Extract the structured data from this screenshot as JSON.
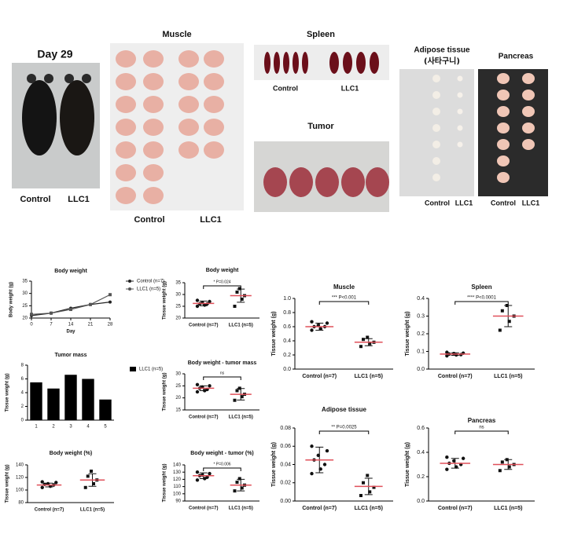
{
  "photos": {
    "mouse": {
      "title": "Day 29",
      "labels": [
        "Control",
        "LLC1"
      ]
    },
    "muscle": {
      "title": "Muscle",
      "labels": [
        "Control",
        "LLC1"
      ]
    },
    "spleen": {
      "title": "Spleen",
      "labels": [
        "Control",
        "LLC1"
      ]
    },
    "tumor": {
      "title": "Tumor"
    },
    "adipose": {
      "title": "Adipose tissue",
      "subtitle": "(사타구니)",
      "labels": [
        "Control",
        "LLC1"
      ]
    },
    "pancreas": {
      "title": "Pancreas",
      "labels": [
        "Control",
        "LLC1"
      ]
    }
  },
  "chart_data": [
    {
      "type": "line",
      "title": "Body weight",
      "x_label": "Day",
      "y_label": "Body weight (g)",
      "x": [
        0,
        7,
        14,
        21,
        28
      ],
      "xlim": [
        0,
        28
      ],
      "xticks": [
        0,
        7,
        14,
        21,
        28
      ],
      "ylim": [
        20,
        35
      ],
      "yticks": [
        20,
        25,
        30,
        35
      ],
      "series": [
        {
          "name": "Control (n=7)",
          "color": "#222222",
          "values": [
            21,
            22,
            24,
            25.5,
            26.5
          ]
        },
        {
          "name": "LLC1 (n=5)",
          "color": "#555555",
          "values": [
            21.5,
            22,
            23.5,
            25.5,
            29.5
          ]
        }
      ]
    },
    {
      "type": "bar",
      "title": "Tumor mass",
      "y_label": "Tissue weight (g)",
      "categories": [
        "1",
        "2",
        "3",
        "4",
        "5"
      ],
      "ylim": [
        0,
        8
      ],
      "yticks": [
        0,
        2,
        4,
        6,
        8
      ],
      "series": [
        {
          "name": "LLC1 (n=5)",
          "color": "#000000",
          "values": [
            5.5,
            4.6,
            6.6,
            6.0,
            3.0
          ]
        }
      ]
    },
    {
      "type": "dot",
      "title": "Body weight (%)",
      "y_label": "Tissue weight (g)",
      "categories": [
        "Control (n=7)",
        "LLC1 (n=5)"
      ],
      "ylim": [
        80,
        140
      ],
      "yticks": [
        80,
        100,
        120,
        140
      ],
      "groups": [
        {
          "values": [
            104,
            106,
            108,
            109,
            110,
            112,
            113
          ],
          "mean": 108,
          "sd": 3
        },
        {
          "values": [
            104,
            110,
            116,
            122,
            130
          ],
          "mean": 116,
          "sd": 10
        }
      ]
    },
    {
      "type": "dot",
      "title": "Body weight",
      "annotation": "* P=0.024",
      "y_label": "Tissue weight (g)",
      "categories": [
        "Control (n=7)",
        "LLC1 (n=5)"
      ],
      "ylim": [
        20,
        35
      ],
      "yticks": [
        20,
        25,
        30,
        35
      ],
      "groups": [
        {
          "values": [
            25,
            25.5,
            26,
            26,
            26.5,
            27,
            27.5
          ],
          "mean": 26.2,
          "sd": 1
        },
        {
          "values": [
            25,
            28,
            29.5,
            31,
            32.5
          ],
          "mean": 29.5,
          "sd": 2.8
        }
      ]
    },
    {
      "type": "dot",
      "title": "Body weight - tumor mass",
      "annotation": "ns",
      "y_label": "Tissue weight (g)",
      "categories": [
        "Control (n=7)",
        "LLC1 (n=5)"
      ],
      "ylim": [
        15,
        30
      ],
      "yticks": [
        15,
        20,
        25,
        30
      ],
      "groups": [
        {
          "values": [
            22.5,
            23,
            23.5,
            24,
            24.5,
            25,
            25.5
          ],
          "mean": 24,
          "sd": 1
        },
        {
          "values": [
            19,
            20.5,
            21.5,
            23,
            24
          ],
          "mean": 21.5,
          "sd": 2.4
        }
      ]
    },
    {
      "type": "dot",
      "title": "Body weight - tumor (%)",
      "annotation": "* P=0.006",
      "y_label": "Tissue weight (g)",
      "categories": [
        "Control (n=7)",
        "LLC1 (n=5)"
      ],
      "ylim": [
        90,
        140
      ],
      "yticks": [
        90,
        100,
        110,
        120,
        130,
        140
      ],
      "groups": [
        {
          "values": [
            119,
            121,
            123,
            125,
            126,
            128,
            130
          ],
          "mean": 125,
          "sd": 4
        },
        {
          "values": [
            104,
            108,
            112,
            116,
            121
          ],
          "mean": 112,
          "sd": 8
        }
      ]
    },
    {
      "type": "dot",
      "title": "Muscle",
      "annotation": "*** P<0.001",
      "y_label": "Tissue weight (g)",
      "categories": [
        "Control (n=7)",
        "LLC1 (n=5)"
      ],
      "ylim": [
        0,
        1
      ],
      "yticks": [
        {
          "value": 0,
          "label": "0.0"
        },
        0.2,
        0.4,
        0.6,
        0.8,
        {
          "value": 1,
          "label": "1.0"
        }
      ],
      "groups": [
        {
          "values": [
            0.55,
            0.57,
            0.6,
            0.6,
            0.62,
            0.65,
            0.67
          ],
          "mean": 0.6,
          "sd": 0.05
        },
        {
          "values": [
            0.32,
            0.36,
            0.38,
            0.42,
            0.45
          ],
          "mean": 0.38,
          "sd": 0.05
        }
      ]
    },
    {
      "type": "dot",
      "title": "Spleen",
      "annotation": "**** P<0.0001",
      "y_label": "Tissue weight (g)",
      "categories": [
        "Control (n=7)",
        "LLC1 (n=5)"
      ],
      "ylim": [
        0,
        0.4
      ],
      "yticks": [
        {
          "value": 0,
          "label": "0.0"
        },
        0.1,
        0.2,
        0.3,
        0.4
      ],
      "groups": [
        {
          "values": [
            0.075,
            0.08,
            0.082,
            0.085,
            0.088,
            0.09,
            0.095
          ],
          "mean": 0.085,
          "sd": 0.007
        },
        {
          "values": [
            0.22,
            0.27,
            0.3,
            0.33,
            0.36
          ],
          "mean": 0.3,
          "sd": 0.06
        }
      ]
    },
    {
      "type": "dot",
      "title": "Adipose tissue",
      "annotation": "** P=0.0025",
      "y_label": "Tissue weight (g)",
      "categories": [
        "Control (n=7)",
        "LLC1 (n=5)"
      ],
      "ylim": [
        0,
        0.08
      ],
      "yticks": [
        {
          "value": 0,
          "label": "0.00"
        },
        0.02,
        0.04,
        0.06,
        0.08
      ],
      "groups": [
        {
          "values": [
            0.03,
            0.035,
            0.04,
            0.045,
            0.05,
            0.055,
            0.06
          ],
          "mean": 0.045,
          "sd": 0.014
        },
        {
          "values": [
            0.006,
            0.01,
            0.015,
            0.02,
            0.028
          ],
          "mean": 0.016,
          "sd": 0.009
        }
      ]
    },
    {
      "type": "dot",
      "title": "Pancreas",
      "annotation": "ns",
      "y_label": "Tissue weight (g)",
      "categories": [
        "Control (n=7)",
        "LLC1 (n=5)"
      ],
      "ylim": [
        0,
        0.6
      ],
      "yticks": [
        {
          "value": 0,
          "label": "0.0"
        },
        0.2,
        0.4,
        0.6
      ],
      "groups": [
        {
          "values": [
            0.26,
            0.28,
            0.3,
            0.31,
            0.33,
            0.35,
            0.36
          ],
          "mean": 0.31,
          "sd": 0.04
        },
        {
          "values": [
            0.25,
            0.28,
            0.3,
            0.32,
            0.34
          ],
          "mean": 0.3,
          "sd": 0.04
        }
      ]
    }
  ]
}
